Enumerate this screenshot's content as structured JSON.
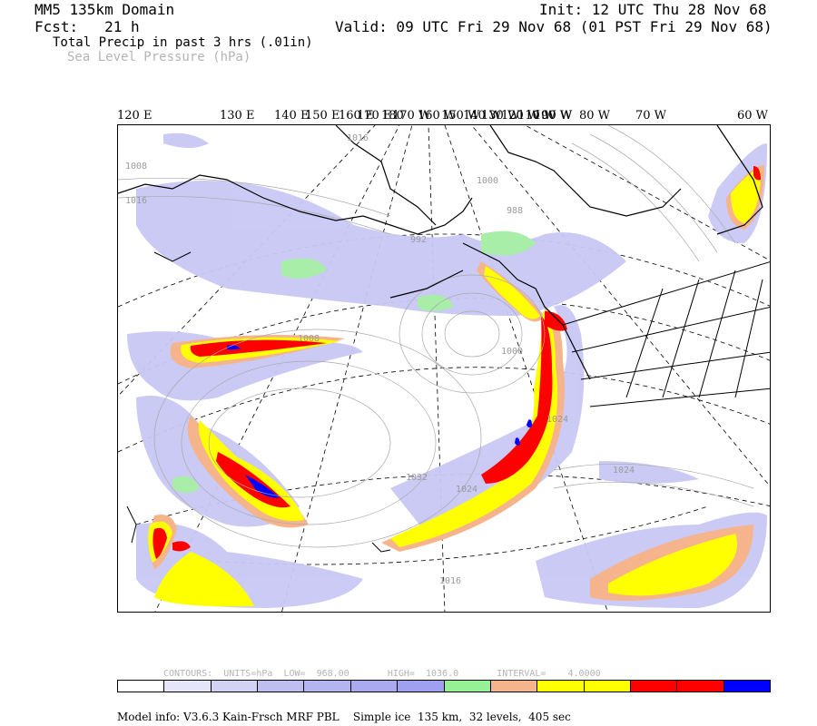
{
  "header": {
    "domain": "MM5 135km Domain",
    "fcst": "Fcst:   21 h",
    "field1": "Total Precip in past 3 hrs (.01in)",
    "field2": "Sea Level Pressure (hPa)",
    "init": "Init: 12 UTC Thu 28 Nov 68",
    "valid": "Valid: 09 UTC Fri 29 Nov 68 (01 PST Fri 29 Nov 68)"
  },
  "lon_labels": [
    "120 E",
    "130 E",
    "140 E",
    "150 E",
    "160 E",
    "170 E",
    "180",
    "170 W",
    "160 W",
    "150 W",
    "140 W",
    "130 W",
    "120 W",
    "110 W",
    "100 W",
    "90 W",
    "80 W",
    "70 W",
    "60 W"
  ],
  "pressure_labels": [
    "1016",
    "1008",
    "1016",
    "992",
    "1000",
    "988",
    "1008",
    "1000",
    "1024",
    "1032",
    "1024",
    "1024",
    "1016"
  ],
  "contour_info": {
    "text": "CONTOURS:  UNITS=hPa  LOW=  968.00       HIGH=  1036.0       INTERVAL=    4.0000"
  },
  "colorbar": [
    "#ffffff",
    "#e6e6fa",
    "#d2d2f5",
    "#bebef0",
    "#b4b4f0",
    "#aaaaf0",
    "#a0a0f0",
    "#96f096",
    "#f5b48c",
    "#ffff00",
    "#ffff00",
    "#ff0000",
    "#ff0000",
    "#0000ff"
  ],
  "model_info": "Model info: V3.6.3 Kain-Frsch MRF PBL    Simple ice  135 km,  32 levels,  405 sec"
}
